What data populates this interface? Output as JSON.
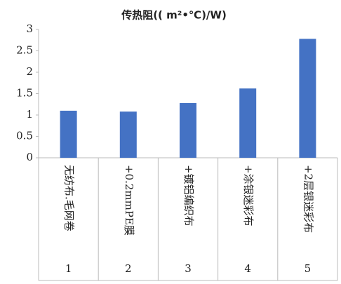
{
  "chart_data": {
    "type": "bar",
    "title": "传热阻(( m²•℃)/W)",
    "categories": [
      "无纺布.毛网卷",
      "+0.2mmPE膜",
      "+镀铝编织布",
      "+涂银迷彩布",
      "+2层银迷彩布"
    ],
    "category_numbers": [
      "1",
      "2",
      "3",
      "4",
      "5"
    ],
    "values": [
      1.1,
      1.08,
      1.28,
      1.62,
      2.78
    ],
    "color": "#4472c4",
    "ylim": [
      0,
      3
    ],
    "yticks": [
      0,
      0.5,
      1,
      1.5,
      2,
      2.5,
      3
    ],
    "grid": false
  }
}
